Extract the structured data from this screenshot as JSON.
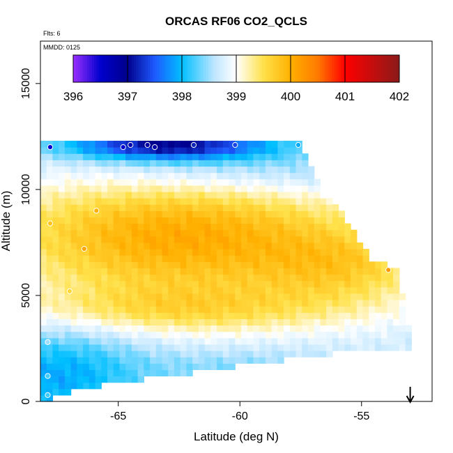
{
  "chart_data": {
    "type": "heatmap",
    "title": "ORCAS RF06 CO2_QCLS",
    "annotations": [
      "Flts: 6",
      "MMDD: 0125"
    ],
    "xlabel": "Latitude (deg N)",
    "ylabel": "Altitude (m)",
    "xlim": [
      -68.2,
      -52.1
    ],
    "ylim": [
      0,
      17000
    ],
    "x_ticks": [
      -65,
      -60,
      -55
    ],
    "x_tick_labels": [
      "-65",
      "-60",
      "-55"
    ],
    "y_ticks": [
      0,
      5000,
      10000,
      15000
    ],
    "y_tick_labels": [
      "0",
      "5000",
      "10000",
      "15000"
    ],
    "colorbar": {
      "min": 396,
      "max": 402,
      "ticks": [
        396,
        397,
        398,
        399,
        400,
        401,
        402
      ],
      "tick_labels": [
        "396",
        "397",
        "398",
        "399",
        "400",
        "401",
        "402"
      ],
      "stops": [
        {
          "v": 396.0,
          "c": "#9b30ff"
        },
        {
          "v": 396.5,
          "c": "#0000cd"
        },
        {
          "v": 397.0,
          "c": "#00008b"
        },
        {
          "v": 397.5,
          "c": "#1e5aff"
        },
        {
          "v": 398.0,
          "c": "#00bfff"
        },
        {
          "v": 398.6,
          "c": "#bfe6ff"
        },
        {
          "v": 399.0,
          "c": "#ffffff"
        },
        {
          "v": 399.5,
          "c": "#ffe14a"
        },
        {
          "v": 400.0,
          "c": "#ffb000"
        },
        {
          "v": 400.5,
          "c": "#ff7a00"
        },
        {
          "v": 401.0,
          "c": "#ff0000"
        },
        {
          "v": 402.0,
          "c": "#8b1a1a"
        }
      ]
    },
    "grid_cell": {
      "dlat": 0.25,
      "dalt": 300
    },
    "coverage": {
      "lat_start": -68.2,
      "alt_start": 0,
      "alt_top": 12300,
      "top_edge": [
        [
          -68.2,
          12300
        ],
        [
          -57.6,
          12300
        ],
        [
          -56.9,
          10500
        ],
        [
          -55.9,
          9000
        ],
        [
          -54.5,
          6600
        ],
        [
          -53.5,
          6300
        ],
        [
          -53.3,
          4900
        ],
        [
          -53.1,
          3800
        ],
        [
          -52.8,
          2700
        ]
      ],
      "bottom_edge": [
        [
          -68.2,
          0
        ],
        [
          -66.5,
          600
        ],
        [
          -65.0,
          900
        ],
        [
          -63.0,
          1200
        ],
        [
          -61.0,
          1500
        ],
        [
          -59.5,
          1800
        ],
        [
          -57.0,
          2100
        ],
        [
          -55.5,
          2400
        ],
        [
          -53.0,
          2500
        ],
        [
          -52.8,
          2700
        ]
      ]
    },
    "field": {
      "background": 398.7,
      "blobs": [
        {
          "lat": -62.5,
          "alt": 7800,
          "slat": 5.5,
          "salt": 2200,
          "amp": 1.35
        },
        {
          "lat": -55.5,
          "alt": 6300,
          "slat": 2.5,
          "salt": 1300,
          "amp": 0.6
        },
        {
          "lat": -62.5,
          "alt": 4300,
          "slat": 5.0,
          "salt": 800,
          "amp": 0.6
        },
        {
          "lat": -67.5,
          "alt": 1200,
          "slat": 2.5,
          "salt": 1700,
          "amp": -0.8
        },
        {
          "lat": -63.0,
          "alt": 12100,
          "slat": 3.0,
          "salt": 500,
          "amp": -1.7
        },
        {
          "lat": -60.0,
          "alt": 11000,
          "slat": 5.0,
          "salt": 1000,
          "amp": -0.5
        },
        {
          "lat": -60.0,
          "alt": 1500,
          "slat": 3.0,
          "salt": 700,
          "amp": -0.3
        }
      ]
    },
    "observations": [
      {
        "lat": -67.8,
        "alt": 12000,
        "v": 396.5
      },
      {
        "lat": -64.8,
        "alt": 12000,
        "v": 396.5
      },
      {
        "lat": -64.5,
        "alt": 12100,
        "v": 396.7
      },
      {
        "lat": -63.8,
        "alt": 12100,
        "v": 396.8
      },
      {
        "lat": -63.5,
        "alt": 12000,
        "v": 396.8
      },
      {
        "lat": -61.9,
        "alt": 12100,
        "v": 397.2
      },
      {
        "lat": -60.2,
        "alt": 12100,
        "v": 397.4
      },
      {
        "lat": -57.6,
        "alt": 12100,
        "v": 397.9
      },
      {
        "lat": -65.9,
        "alt": 9000,
        "v": 400.0
      },
      {
        "lat": -67.8,
        "alt": 8400,
        "v": 399.8
      },
      {
        "lat": -66.4,
        "alt": 7200,
        "v": 400.1
      },
      {
        "lat": -67.0,
        "alt": 5200,
        "v": 399.6
      },
      {
        "lat": -53.9,
        "alt": 6200,
        "v": 400.2
      },
      {
        "lat": -67.9,
        "alt": 2800,
        "v": 398.5
      },
      {
        "lat": -67.9,
        "alt": 1200,
        "v": 398.2
      },
      {
        "lat": -67.9,
        "alt": 300,
        "v": 398.2
      }
    ],
    "arrow": {
      "lat": -53.0,
      "direction": "down"
    },
    "grid": false,
    "colors": {
      "marker": "#ffffff",
      "frame": "#000000"
    }
  }
}
